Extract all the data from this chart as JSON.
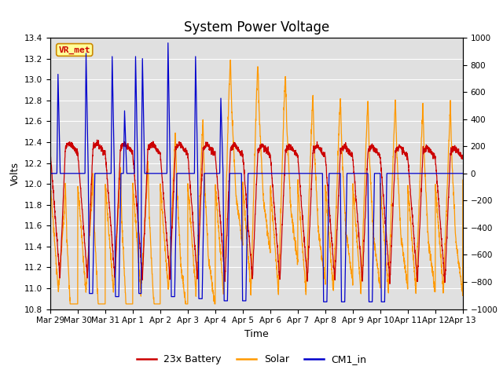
{
  "title": "System Power Voltage",
  "xlabel": "Time",
  "ylabel_left": "Volts",
  "ylim_left": [
    10.8,
    13.4
  ],
  "ylim_right": [
    -1000,
    1000
  ],
  "background_color": "#ffffff",
  "plot_bg_color": "#e0e0e0",
  "grid_color": "#ffffff",
  "title_fontsize": 12,
  "label_fontsize": 9,
  "tick_fontsize": 7.5,
  "legend_labels": [
    "23x Battery",
    "Solar",
    "CM1_in"
  ],
  "legend_colors": [
    "#cc0000",
    "#ff9900",
    "#0000cc"
  ],
  "annotation_text": "VR_met",
  "annotation_color": "#cc0000",
  "annotation_bg": "#ffff99",
  "annotation_border": "#cc8800",
  "x_tick_labels": [
    "Mar 29",
    "Mar 30",
    "Mar 31",
    "Apr 1",
    "Apr 2",
    "Apr 3",
    "Apr 4",
    "Apr 5",
    "Apr 6",
    "Apr 7",
    "Apr 8",
    "Apr 9",
    "Apr 10",
    "Apr 11",
    "Apr 12",
    "Apr 13"
  ],
  "x_tick_positions": [
    0,
    1,
    2,
    3,
    4,
    5,
    6,
    7,
    8,
    9,
    10,
    11,
    12,
    13,
    14,
    15
  ],
  "yticks_left": [
    10.8,
    11.0,
    11.2,
    11.4,
    11.6,
    11.8,
    12.0,
    12.2,
    12.4,
    12.6,
    12.8,
    13.0,
    13.2,
    13.4
  ],
  "yticks_right": [
    -1000,
    -800,
    -600,
    -400,
    -200,
    0,
    200,
    400,
    600,
    800,
    1000
  ]
}
